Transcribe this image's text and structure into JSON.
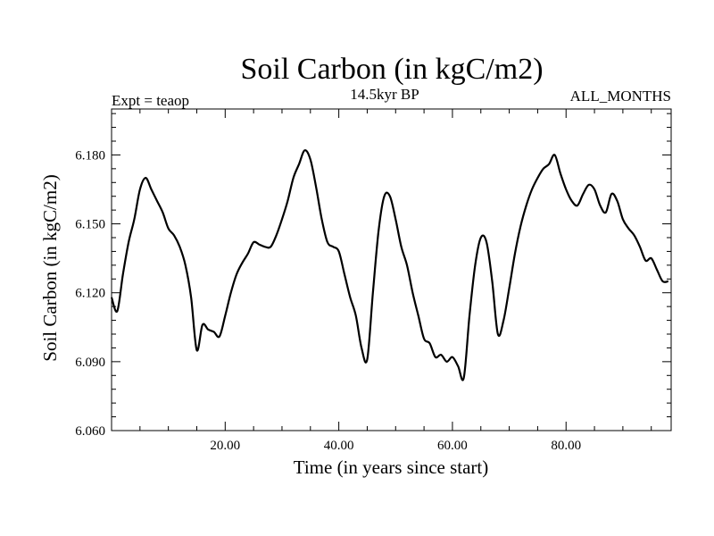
{
  "chart_data": {
    "type": "line",
    "title": "Soil Carbon (in kgC/m2)",
    "subtitle_left": "Expt = teaop",
    "subtitle_center": "14.5kyr BP",
    "subtitle_right": "ALL_MONTHS",
    "xlabel": "Time (in years since start)",
    "ylabel": "Soil Carbon (in kgC/m2)",
    "xlim": [
      0,
      98.5
    ],
    "ylim": [
      6.06,
      6.2
    ],
    "x_ticks": [
      20,
      40,
      60,
      80
    ],
    "x_tick_labels": [
      "20.00",
      "40.00",
      "60.00",
      "80.00"
    ],
    "y_ticks": [
      6.06,
      6.09,
      6.12,
      6.15,
      6.18
    ],
    "y_tick_labels": [
      "6.060",
      "6.090",
      "6.120",
      "6.150",
      "6.180"
    ],
    "grid": false,
    "legend": "none",
    "line_color": "#000000",
    "series": [
      {
        "x": [
          0,
          1,
          2,
          3,
          4,
          5,
          6,
          7,
          8,
          9,
          10,
          11,
          12,
          13,
          14,
          15,
          16,
          17,
          18,
          19,
          20,
          21,
          22,
          23,
          24,
          25,
          26,
          27,
          28,
          29,
          30,
          31,
          32,
          33,
          34,
          35,
          36,
          37,
          38,
          39,
          40,
          41,
          42,
          43,
          44,
          45,
          46,
          47,
          48,
          49,
          50,
          51,
          52,
          53,
          54,
          55,
          56,
          57,
          58,
          59,
          60,
          61,
          62,
          63,
          64,
          65,
          66,
          67,
          68,
          69,
          70,
          71,
          72,
          73,
          74,
          75,
          76,
          77,
          78,
          79,
          80,
          81,
          82,
          83,
          84,
          85,
          86,
          87,
          88,
          89,
          90,
          91,
          92,
          93,
          94,
          95,
          96,
          97,
          98
        ],
        "values": [
          6.118,
          6.112,
          6.128,
          6.142,
          6.152,
          6.165,
          6.17,
          6.165,
          6.16,
          6.155,
          6.148,
          6.145,
          6.14,
          6.132,
          6.118,
          6.095,
          6.106,
          6.104,
          6.103,
          6.101,
          6.11,
          6.12,
          6.128,
          6.133,
          6.137,
          6.142,
          6.141,
          6.14,
          6.14,
          6.145,
          6.152,
          6.16,
          6.17,
          6.176,
          6.182,
          6.178,
          6.166,
          6.152,
          6.142,
          6.14,
          6.138,
          6.128,
          6.118,
          6.11,
          6.096,
          6.091,
          6.12,
          6.147,
          6.162,
          6.162,
          6.152,
          6.14,
          6.132,
          6.12,
          6.11,
          6.1,
          6.098,
          6.092,
          6.093,
          6.09,
          6.092,
          6.088,
          6.083,
          6.11,
          6.132,
          6.144,
          6.142,
          6.125,
          6.102,
          6.108,
          6.122,
          6.137,
          6.149,
          6.158,
          6.165,
          6.17,
          6.174,
          6.176,
          6.18,
          6.172,
          6.165,
          6.16,
          6.158,
          6.163,
          6.167,
          6.165,
          6.158,
          6.155,
          6.163,
          6.16,
          6.152,
          6.148,
          6.145,
          6.14,
          6.134,
          6.135,
          6.13,
          6.125,
          6.125
        ]
      }
    ]
  }
}
